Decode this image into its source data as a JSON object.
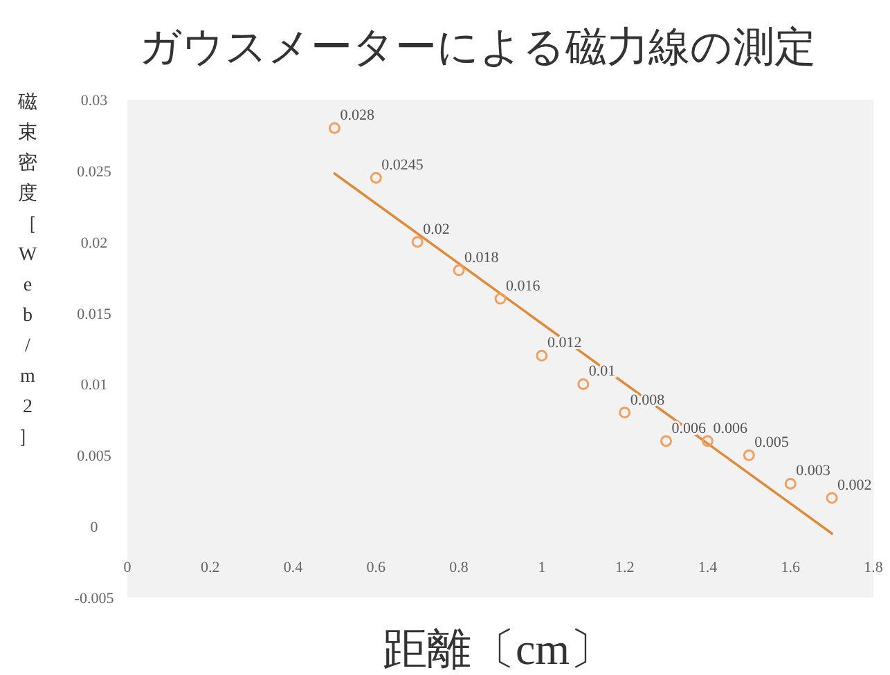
{
  "chart_data": {
    "type": "scatter",
    "title": "ガウスメーターによる磁力線の測定",
    "xlabel": "距離〔cm〕",
    "ylabel": "磁束密度［Web/m2］",
    "xlim": [
      0,
      1.8
    ],
    "ylim": [
      -0.005,
      0.03
    ],
    "xticks": [
      0,
      0.2,
      0.4,
      0.6,
      0.8,
      1,
      1.2,
      1.4,
      1.6,
      1.8
    ],
    "yticks": [
      -0.005,
      0,
      0.005,
      0.01,
      0.015,
      0.02,
      0.025,
      0.03
    ],
    "grid": false,
    "series": [
      {
        "type": "scatter",
        "color": "#f0a060",
        "marker": "circle",
        "value_labels": [
          "0.028",
          "0.0245",
          "0.02",
          "0.018",
          "0.016",
          "0.012",
          "0.01",
          "0.008",
          "0.006",
          "0.006",
          "0.005",
          "0.003",
          "0.002"
        ],
        "x": [
          0.5,
          0.6,
          0.7,
          0.8,
          0.9,
          1.0,
          1.1,
          1.2,
          1.3,
          1.4,
          1.5,
          1.6,
          1.7
        ],
        "values": [
          0.028,
          0.0245,
          0.02,
          0.018,
          0.016,
          0.012,
          0.01,
          0.008,
          0.006,
          0.006,
          0.005,
          0.003,
          0.002
        ]
      },
      {
        "type": "line",
        "color": "#e08a3c",
        "x": [
          0.5,
          1.7
        ],
        "values": [
          0.0248,
          -0.0005
        ]
      }
    ]
  }
}
